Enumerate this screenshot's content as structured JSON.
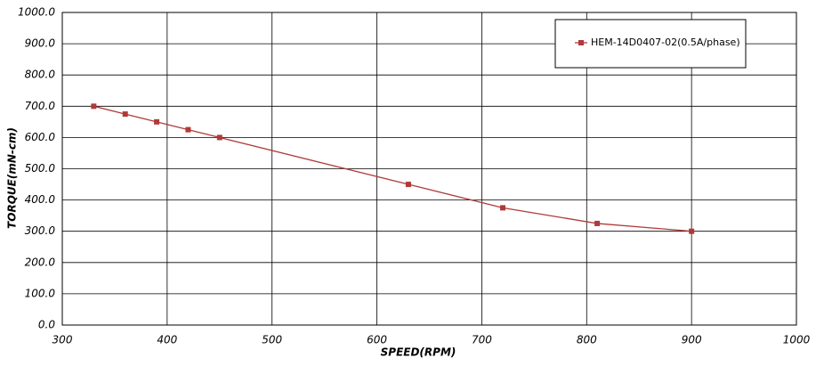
{
  "chart_data": {
    "type": "line",
    "x_label": "SPEED(RPM)",
    "y_label": "TORQUE(mN-cm)",
    "x": [
      330,
      360,
      390,
      420,
      450,
      630,
      720,
      810,
      900
    ],
    "series": [
      {
        "name": "HEM-14D0407-02(0.5A/phase)",
        "color": "#b03a3a",
        "values": [
          700,
          675,
          650,
          625,
          600,
          450,
          375,
          325,
          300
        ]
      }
    ],
    "xlim": [
      300,
      1000
    ],
    "xticks": [
      300,
      400,
      500,
      600,
      700,
      800,
      900,
      1000
    ],
    "ylim": [
      0,
      1000
    ],
    "yticks": [
      {
        "value": 0,
        "label": "0.0"
      },
      {
        "value": 100,
        "label": "100.0"
      },
      {
        "value": 200,
        "label": "200.0"
      },
      {
        "value": 300,
        "label": "300.0"
      },
      {
        "value": 400,
        "label": "400.0"
      },
      {
        "value": 500,
        "label": "500.0"
      },
      {
        "value": 600,
        "label": "600.0"
      },
      {
        "value": 700,
        "label": "700.0"
      },
      {
        "value": 800,
        "label": "800.0"
      },
      {
        "value": 900,
        "label": "900.0"
      },
      {
        "value": 1000,
        "label": "1000.0"
      }
    ],
    "grid": true,
    "legend": "top-right"
  }
}
